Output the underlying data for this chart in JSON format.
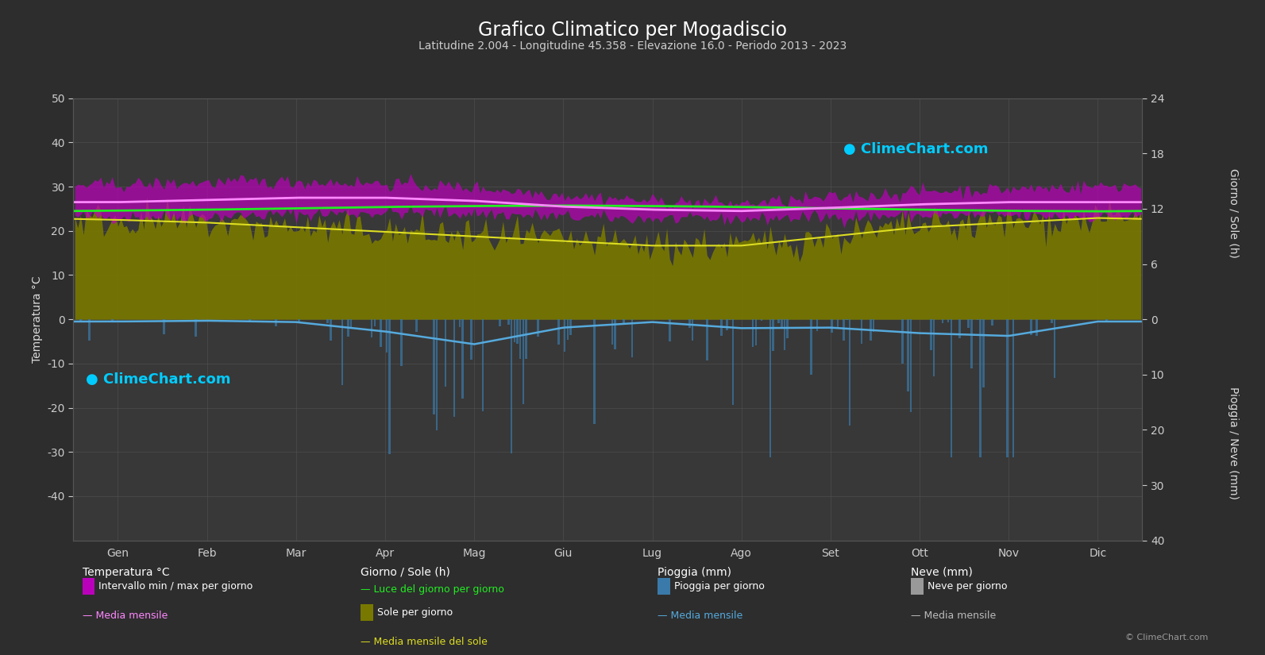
{
  "title": "Grafico Climatico per Mogadiscio",
  "subtitle": "Latitudine 2.004 - Longitudine 45.358 - Elevazione 16.0 - Periodo 2013 - 2023",
  "months": [
    "Gen",
    "Feb",
    "Mar",
    "Apr",
    "Mag",
    "Giu",
    "Lug",
    "Ago",
    "Set",
    "Ott",
    "Nov",
    "Dic"
  ],
  "background_color": "#2d2d2d",
  "plot_bg_color": "#383838",
  "grid_color": "#555555",
  "temp_min_mean": [
    23.2,
    23.3,
    23.8,
    24.2,
    24.0,
    23.2,
    22.8,
    22.8,
    23.2,
    23.5,
    23.5,
    23.2
  ],
  "temp_max_mean": [
    30.5,
    31.0,
    31.2,
    30.8,
    29.8,
    28.2,
    26.8,
    26.2,
    27.5,
    29.0,
    29.5,
    30.2
  ],
  "temp_monthly_mean": [
    26.5,
    27.0,
    27.5,
    27.5,
    26.8,
    25.5,
    24.8,
    24.5,
    25.2,
    26.0,
    26.5,
    26.5
  ],
  "daylight_hours": [
    11.8,
    11.9,
    12.05,
    12.2,
    12.3,
    12.35,
    12.3,
    12.2,
    12.05,
    11.9,
    11.78,
    11.72
  ],
  "sunshine_hours_mean": [
    10.8,
    10.5,
    10.0,
    9.5,
    9.0,
    8.5,
    8.0,
    8.0,
    9.0,
    10.0,
    10.5,
    11.0
  ],
  "precip_daily_mm_mean": [
    0.5,
    0.3,
    0.6,
    2.8,
    6.0,
    2.0,
    0.7,
    2.0,
    1.8,
    3.0,
    3.5,
    0.5
  ],
  "precip_smooth_mm": [
    0.4,
    0.25,
    0.5,
    2.2,
    4.5,
    1.5,
    0.5,
    1.6,
    1.5,
    2.5,
    3.0,
    0.4
  ],
  "temp_ylim_min": -50,
  "temp_ylim_max": 50,
  "sun_axis_max": 24,
  "rain_axis_max": 40,
  "sun_right_ticks": [
    0,
    6,
    12,
    18,
    24
  ],
  "rain_right_ticks": [
    0,
    10,
    20,
    30,
    40
  ],
  "temp_fill_color": "#bb00bb",
  "temp_fill_alpha": 0.7,
  "temp_mean_color": "#ff88ff",
  "temp_mean_lw": 2.0,
  "daylight_color": "#22ee22",
  "daylight_lw": 2.0,
  "sunshine_fill_color": "#787800",
  "sunshine_fill_alpha": 0.92,
  "sunshine_mean_color": "#dddd22",
  "sunshine_mean_lw": 1.5,
  "precip_bar_color": "#3a7aaa",
  "precip_bar_alpha": 0.7,
  "precip_mean_color": "#55aadd",
  "precip_mean_lw": 1.8,
  "snow_bar_color": "#999999",
  "snow_mean_color": "#bbbbbb",
  "title_color": "#ffffff",
  "subtitle_color": "#cccccc",
  "axis_label_color": "#dddddd",
  "tick_color": "#cccccc",
  "title_fontsize": 17,
  "subtitle_fontsize": 10,
  "axis_label_fontsize": 10,
  "tick_fontsize": 10,
  "legend_header_fontsize": 10,
  "legend_fontsize": 9,
  "watermark_color": "#00ccff",
  "watermark_fontsize": 13
}
